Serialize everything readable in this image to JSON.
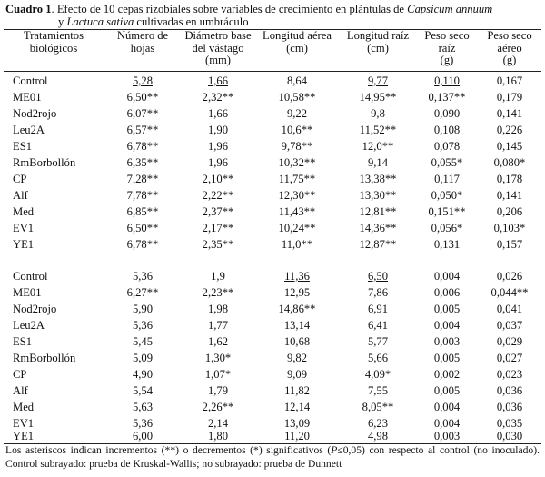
{
  "caption": {
    "label": "Cuadro 1",
    "text_a": ". Efecto de 10 cepas rizobiales sobre variables de crecimiento en plántulas de ",
    "species1": "Capsicum annuum",
    "conj": "y ",
    "species2": "Lactuca sativa",
    "text_b": " cultivadas en umbráculo"
  },
  "headers": {
    "treatments": [
      "Tratamientos",
      "biológicos"
    ],
    "leaves": [
      "Número de",
      "hojas"
    ],
    "diameter": [
      "Diámetro base",
      "del vástago",
      "(mm)"
    ],
    "aerial_length": [
      "Longitud aérea",
      "(cm)"
    ],
    "root_length": [
      "Longitud raíz",
      "(cm)"
    ],
    "root_dry": [
      "Peso seco",
      "raíz",
      "(g)"
    ],
    "aerial_dry": [
      "Peso seco",
      "aéreo",
      "(g)"
    ]
  },
  "group1": [
    {
      "name": "Control",
      "leaves": "5,28",
      "diameter": "1,66",
      "aerial": "8,64",
      "root": "9,77",
      "rootdry": "0,110",
      "aerialdry": "0,167"
    },
    {
      "name": "ME01",
      "leaves": "6,50**",
      "diameter": "2,32**",
      "aerial": "10,58**",
      "root": "14,95**",
      "rootdry": "0,137**",
      "aerialdry": "0,179"
    },
    {
      "name": "Nod2rojo",
      "leaves": "6,07**",
      "diameter": "1,66",
      "aerial": "9,22",
      "root": "9,8",
      "rootdry": "0,090",
      "aerialdry": "0,141"
    },
    {
      "name": "Leu2A",
      "leaves": "6,57**",
      "diameter": "1,90",
      "aerial": "10,6**",
      "root": "11,52**",
      "rootdry": "0,108",
      "aerialdry": "0,226"
    },
    {
      "name": "ES1",
      "leaves": "6,78**",
      "diameter": "1,96",
      "aerial": "9,78**",
      "root": "12,0**",
      "rootdry": "0,078",
      "aerialdry": "0,145"
    },
    {
      "name": "RmBorbollón",
      "leaves": "6,35**",
      "diameter": "1,96",
      "aerial": "10,32**",
      "root": "9,14",
      "rootdry": "0,055*",
      "aerialdry": "0,080*"
    },
    {
      "name": "CP",
      "leaves": "7,28**",
      "diameter": "2,10**",
      "aerial": "11,75**",
      "root": "13,38**",
      "rootdry": "0,117",
      "aerialdry": "0,178"
    },
    {
      "name": "Alf",
      "leaves": "7,78**",
      "diameter": "2,22**",
      "aerial": "12,30**",
      "root": "13,30**",
      "rootdry": "0,050*",
      "aerialdry": "0,141"
    },
    {
      "name": "Med",
      "leaves": "6,85**",
      "diameter": "2,37**",
      "aerial": "11,43**",
      "root": "12,81**",
      "rootdry": "0,151**",
      "aerialdry": "0,206"
    },
    {
      "name": "EV1",
      "leaves": "6,50**",
      "diameter": "2,17**",
      "aerial": "10,24**",
      "root": "14,36**",
      "rootdry": "0,056*",
      "aerialdry": "0,103*"
    },
    {
      "name": "YE1",
      "leaves": "6,78**",
      "diameter": "2,35**",
      "aerial": "11,0**",
      "root": "12,87**",
      "rootdry": "0,131",
      "aerialdry": "0,157"
    }
  ],
  "group2": [
    {
      "name": "Control",
      "leaves": "5,36",
      "diameter": "1,9",
      "aerial": "11,36",
      "root": "6,50",
      "rootdry": "0,004",
      "aerialdry": "0,026"
    },
    {
      "name": "ME01",
      "leaves": "6,27**",
      "diameter": "2,23**",
      "aerial": "12,95",
      "root": "7,86",
      "rootdry": "0,006",
      "aerialdry": "0,044**"
    },
    {
      "name": "Nod2rojo",
      "leaves": "5,90",
      "diameter": "1,98",
      "aerial": "14,86**",
      "root": "6,91",
      "rootdry": "0,005",
      "aerialdry": "0,041"
    },
    {
      "name": "Leu2A",
      "leaves": "5,36",
      "diameter": "1,77",
      "aerial": "13,14",
      "root": "6,41",
      "rootdry": "0,004",
      "aerialdry": "0,037"
    },
    {
      "name": "ES1",
      "leaves": "5,45",
      "diameter": "1,62",
      "aerial": "10,68",
      "root": "5,77",
      "rootdry": "0,003",
      "aerialdry": "0,029"
    },
    {
      "name": "RmBorbollón",
      "leaves": "5,09",
      "diameter": "1,30*",
      "aerial": "9,82",
      "root": "5,66",
      "rootdry": "0,005",
      "aerialdry": "0,027"
    },
    {
      "name": "CP",
      "leaves": "4,90",
      "diameter": "1,07*",
      "aerial": "9,09",
      "root": "4,09*",
      "rootdry": "0,002",
      "aerialdry": "0,023"
    },
    {
      "name": "Alf",
      "leaves": "5,54",
      "diameter": "1,79",
      "aerial": "11,82",
      "root": "7,55",
      "rootdry": "0,005",
      "aerialdry": "0,036"
    },
    {
      "name": "Med",
      "leaves": "5,63",
      "diameter": "2,26**",
      "aerial": "12,14",
      "root": "8,05**",
      "rootdry": "0,004",
      "aerialdry": "0,036"
    },
    {
      "name": "EV1",
      "leaves": "5,36",
      "diameter": "2,14",
      "aerial": "13,09",
      "root": "6,23",
      "rootdry": "0,004",
      "aerialdry": "0,035"
    },
    {
      "name": "YE1",
      "leaves": "6,00",
      "diameter": "1,80",
      "aerial": "11,20",
      "root": "4,98",
      "rootdry": "0,003",
      "aerialdry": "0,030"
    }
  ],
  "footnote": {
    "part1": "Los asteriscos indican incrementos (**) o decrementos (*) significativos (",
    "p": "P",
    "part2": "≤0,05) con respecto al control (no inoculado). Control subrayado: prueba de Kruskal-Wallis; no subrayado: prueba de Dunnett"
  }
}
